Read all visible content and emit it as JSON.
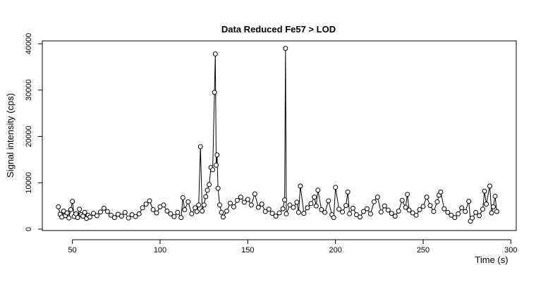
{
  "chart_data": {
    "type": "scatter",
    "title": "Data Reduced Fe57 > LOD",
    "xlabel": "Time (s)",
    "ylabel": "Signal intensity (cps)",
    "x_ticks": [
      "50",
      "100",
      "150",
      "200",
      "250",
      "300"
    ],
    "y_ticks": [
      "0",
      "10000",
      "20000",
      "30000",
      "40000"
    ],
    "xlim": [
      40,
      300
    ],
    "ylim": [
      0,
      40000
    ],
    "grid": false,
    "legend": "none",
    "marker": "open-circle",
    "line": "connected",
    "color": "#000000",
    "x_range_data": [
      42,
      292
    ],
    "points": [
      [
        42,
        4800
      ],
      [
        43,
        3200
      ],
      [
        44,
        2600
      ],
      [
        45,
        3900
      ],
      [
        46,
        2900
      ],
      [
        47,
        3500
      ],
      [
        48,
        2400
      ],
      [
        49,
        4200
      ],
      [
        50,
        6000
      ],
      [
        51,
        2700
      ],
      [
        52,
        3300
      ],
      [
        53,
        2500
      ],
      [
        54,
        4300
      ],
      [
        55,
        3100
      ],
      [
        56,
        2800
      ],
      [
        57,
        3600
      ],
      [
        58,
        2300
      ],
      [
        59,
        3000
      ],
      [
        60,
        2600
      ],
      [
        62,
        3400
      ],
      [
        64,
        2900
      ],
      [
        66,
        3700
      ],
      [
        68,
        4500
      ],
      [
        70,
        3800
      ],
      [
        72,
        3000
      ],
      [
        74,
        2500
      ],
      [
        76,
        3200
      ],
      [
        78,
        2800
      ],
      [
        80,
        3600
      ],
      [
        82,
        2400
      ],
      [
        84,
        3100
      ],
      [
        86,
        2700
      ],
      [
        88,
        3300
      ],
      [
        90,
        4600
      ],
      [
        92,
        5400
      ],
      [
        94,
        6100
      ],
      [
        96,
        4200
      ],
      [
        98,
        3500
      ],
      [
        100,
        4800
      ],
      [
        102,
        5200
      ],
      [
        104,
        3900
      ],
      [
        106,
        3300
      ],
      [
        108,
        2700
      ],
      [
        110,
        3600
      ],
      [
        112,
        2500
      ],
      [
        113,
        6800
      ],
      [
        114,
        4200
      ],
      [
        116,
        5900
      ],
      [
        118,
        3300
      ],
      [
        120,
        4600
      ],
      [
        121,
        3800
      ],
      [
        122,
        5200
      ],
      [
        123,
        17800
      ],
      [
        124,
        3900
      ],
      [
        125,
        5200
      ],
      [
        126,
        7000
      ],
      [
        127,
        8400
      ],
      [
        128,
        9600
      ],
      [
        129,
        13300
      ],
      [
        130,
        12800
      ],
      [
        131,
        29500
      ],
      [
        131.5,
        37800
      ],
      [
        132,
        13800
      ],
      [
        132.5,
        16000
      ],
      [
        133,
        8800
      ],
      [
        134,
        5200
      ],
      [
        135,
        3600
      ],
      [
        136,
        2600
      ],
      [
        138,
        3900
      ],
      [
        140,
        5600
      ],
      [
        142,
        4800
      ],
      [
        144,
        6200
      ],
      [
        146,
        6900
      ],
      [
        148,
        5800
      ],
      [
        150,
        6400
      ],
      [
        152,
        5200
      ],
      [
        154,
        7600
      ],
      [
        156,
        4700
      ],
      [
        158,
        5400
      ],
      [
        160,
        3800
      ],
      [
        162,
        4300
      ],
      [
        164,
        3400
      ],
      [
        166,
        2800
      ],
      [
        168,
        3500
      ],
      [
        170,
        4400
      ],
      [
        171,
        6300
      ],
      [
        171.5,
        39000
      ],
      [
        172,
        3300
      ],
      [
        174,
        5200
      ],
      [
        176,
        4700
      ],
      [
        178,
        5800
      ],
      [
        179,
        3600
      ],
      [
        180,
        9300
      ],
      [
        182,
        3400
      ],
      [
        184,
        4600
      ],
      [
        186,
        5500
      ],
      [
        188,
        6900
      ],
      [
        189,
        5000
      ],
      [
        190,
        8400
      ],
      [
        192,
        4200
      ],
      [
        194,
        3600
      ],
      [
        196,
        6100
      ],
      [
        198,
        3100
      ],
      [
        199,
        2500
      ],
      [
        200,
        9000
      ],
      [
        202,
        4300
      ],
      [
        204,
        3700
      ],
      [
        206,
        5100
      ],
      [
        207,
        8000
      ],
      [
        208,
        3300
      ],
      [
        210,
        4500
      ],
      [
        212,
        3100
      ],
      [
        214,
        2600
      ],
      [
        216,
        3800
      ],
      [
        218,
        4400
      ],
      [
        220,
        3300
      ],
      [
        222,
        5900
      ],
      [
        224,
        6900
      ],
      [
        226,
        3700
      ],
      [
        228,
        5000
      ],
      [
        230,
        4100
      ],
      [
        232,
        3400
      ],
      [
        234,
        2800
      ],
      [
        236,
        3900
      ],
      [
        238,
        6200
      ],
      [
        240,
        4700
      ],
      [
        241,
        7500
      ],
      [
        242,
        4100
      ],
      [
        244,
        3500
      ],
      [
        246,
        3000
      ],
      [
        248,
        4200
      ],
      [
        250,
        4900
      ],
      [
        252,
        6900
      ],
      [
        254,
        5100
      ],
      [
        256,
        3800
      ],
      [
        258,
        5900
      ],
      [
        259,
        7300
      ],
      [
        260,
        8000
      ],
      [
        262,
        4400
      ],
      [
        264,
        3600
      ],
      [
        266,
        3000
      ],
      [
        268,
        2500
      ],
      [
        270,
        3300
      ],
      [
        272,
        4600
      ],
      [
        274,
        3800
      ],
      [
        276,
        6000
      ],
      [
        277,
        1700
      ],
      [
        278,
        2400
      ],
      [
        280,
        3600
      ],
      [
        282,
        2900
      ],
      [
        284,
        4300
      ],
      [
        285,
        8200
      ],
      [
        286,
        5400
      ],
      [
        288,
        9300
      ],
      [
        289,
        3500
      ],
      [
        290,
        4800
      ],
      [
        291,
        7100
      ],
      [
        292,
        3800
      ]
    ]
  }
}
